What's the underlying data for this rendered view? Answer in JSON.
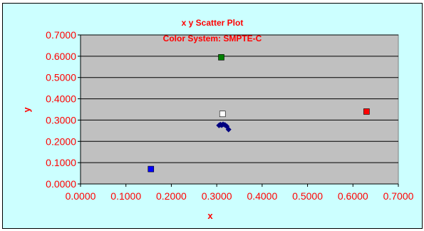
{
  "chart_data": {
    "type": "scatter",
    "title": "x y Scatter Plot",
    "subtitle": "Color System: SMPTE-C",
    "xlabel": "x",
    "ylabel": "y",
    "xlim": [
      0,
      0.7
    ],
    "ylim": [
      0,
      0.7
    ],
    "xticks": [
      "0.0000",
      "0.1000",
      "0.2000",
      "0.3000",
      "0.4000",
      "0.5000",
      "0.6000",
      "0.7000"
    ],
    "yticks": [
      "0.0000",
      "0.1000",
      "0.2000",
      "0.3000",
      "0.4000",
      "0.5000",
      "0.6000",
      "0.7000"
    ],
    "grid": true,
    "legend": "none",
    "series": [
      {
        "marker": "square",
        "points": [
          {
            "x": 0.63,
            "y": 0.34,
            "color": "#ff0000"
          },
          {
            "x": 0.31,
            "y": 0.595,
            "color": "#008000"
          },
          {
            "x": 0.155,
            "y": 0.07,
            "color": "#0000ff"
          },
          {
            "x": 0.3127,
            "y": 0.329,
            "color": "#ffffff"
          }
        ]
      },
      {
        "marker": "diamond",
        "color": "#000080",
        "points": [
          {
            "x": 0.305,
            "y": 0.275
          },
          {
            "x": 0.308,
            "y": 0.279
          },
          {
            "x": 0.311,
            "y": 0.276
          },
          {
            "x": 0.314,
            "y": 0.28
          },
          {
            "x": 0.318,
            "y": 0.277
          },
          {
            "x": 0.322,
            "y": 0.271
          },
          {
            "x": 0.326,
            "y": 0.256
          }
        ]
      }
    ]
  },
  "colors": {
    "background": "#ccffff",
    "plot_area": "#c0c0c0",
    "text": "#ff0000"
  }
}
